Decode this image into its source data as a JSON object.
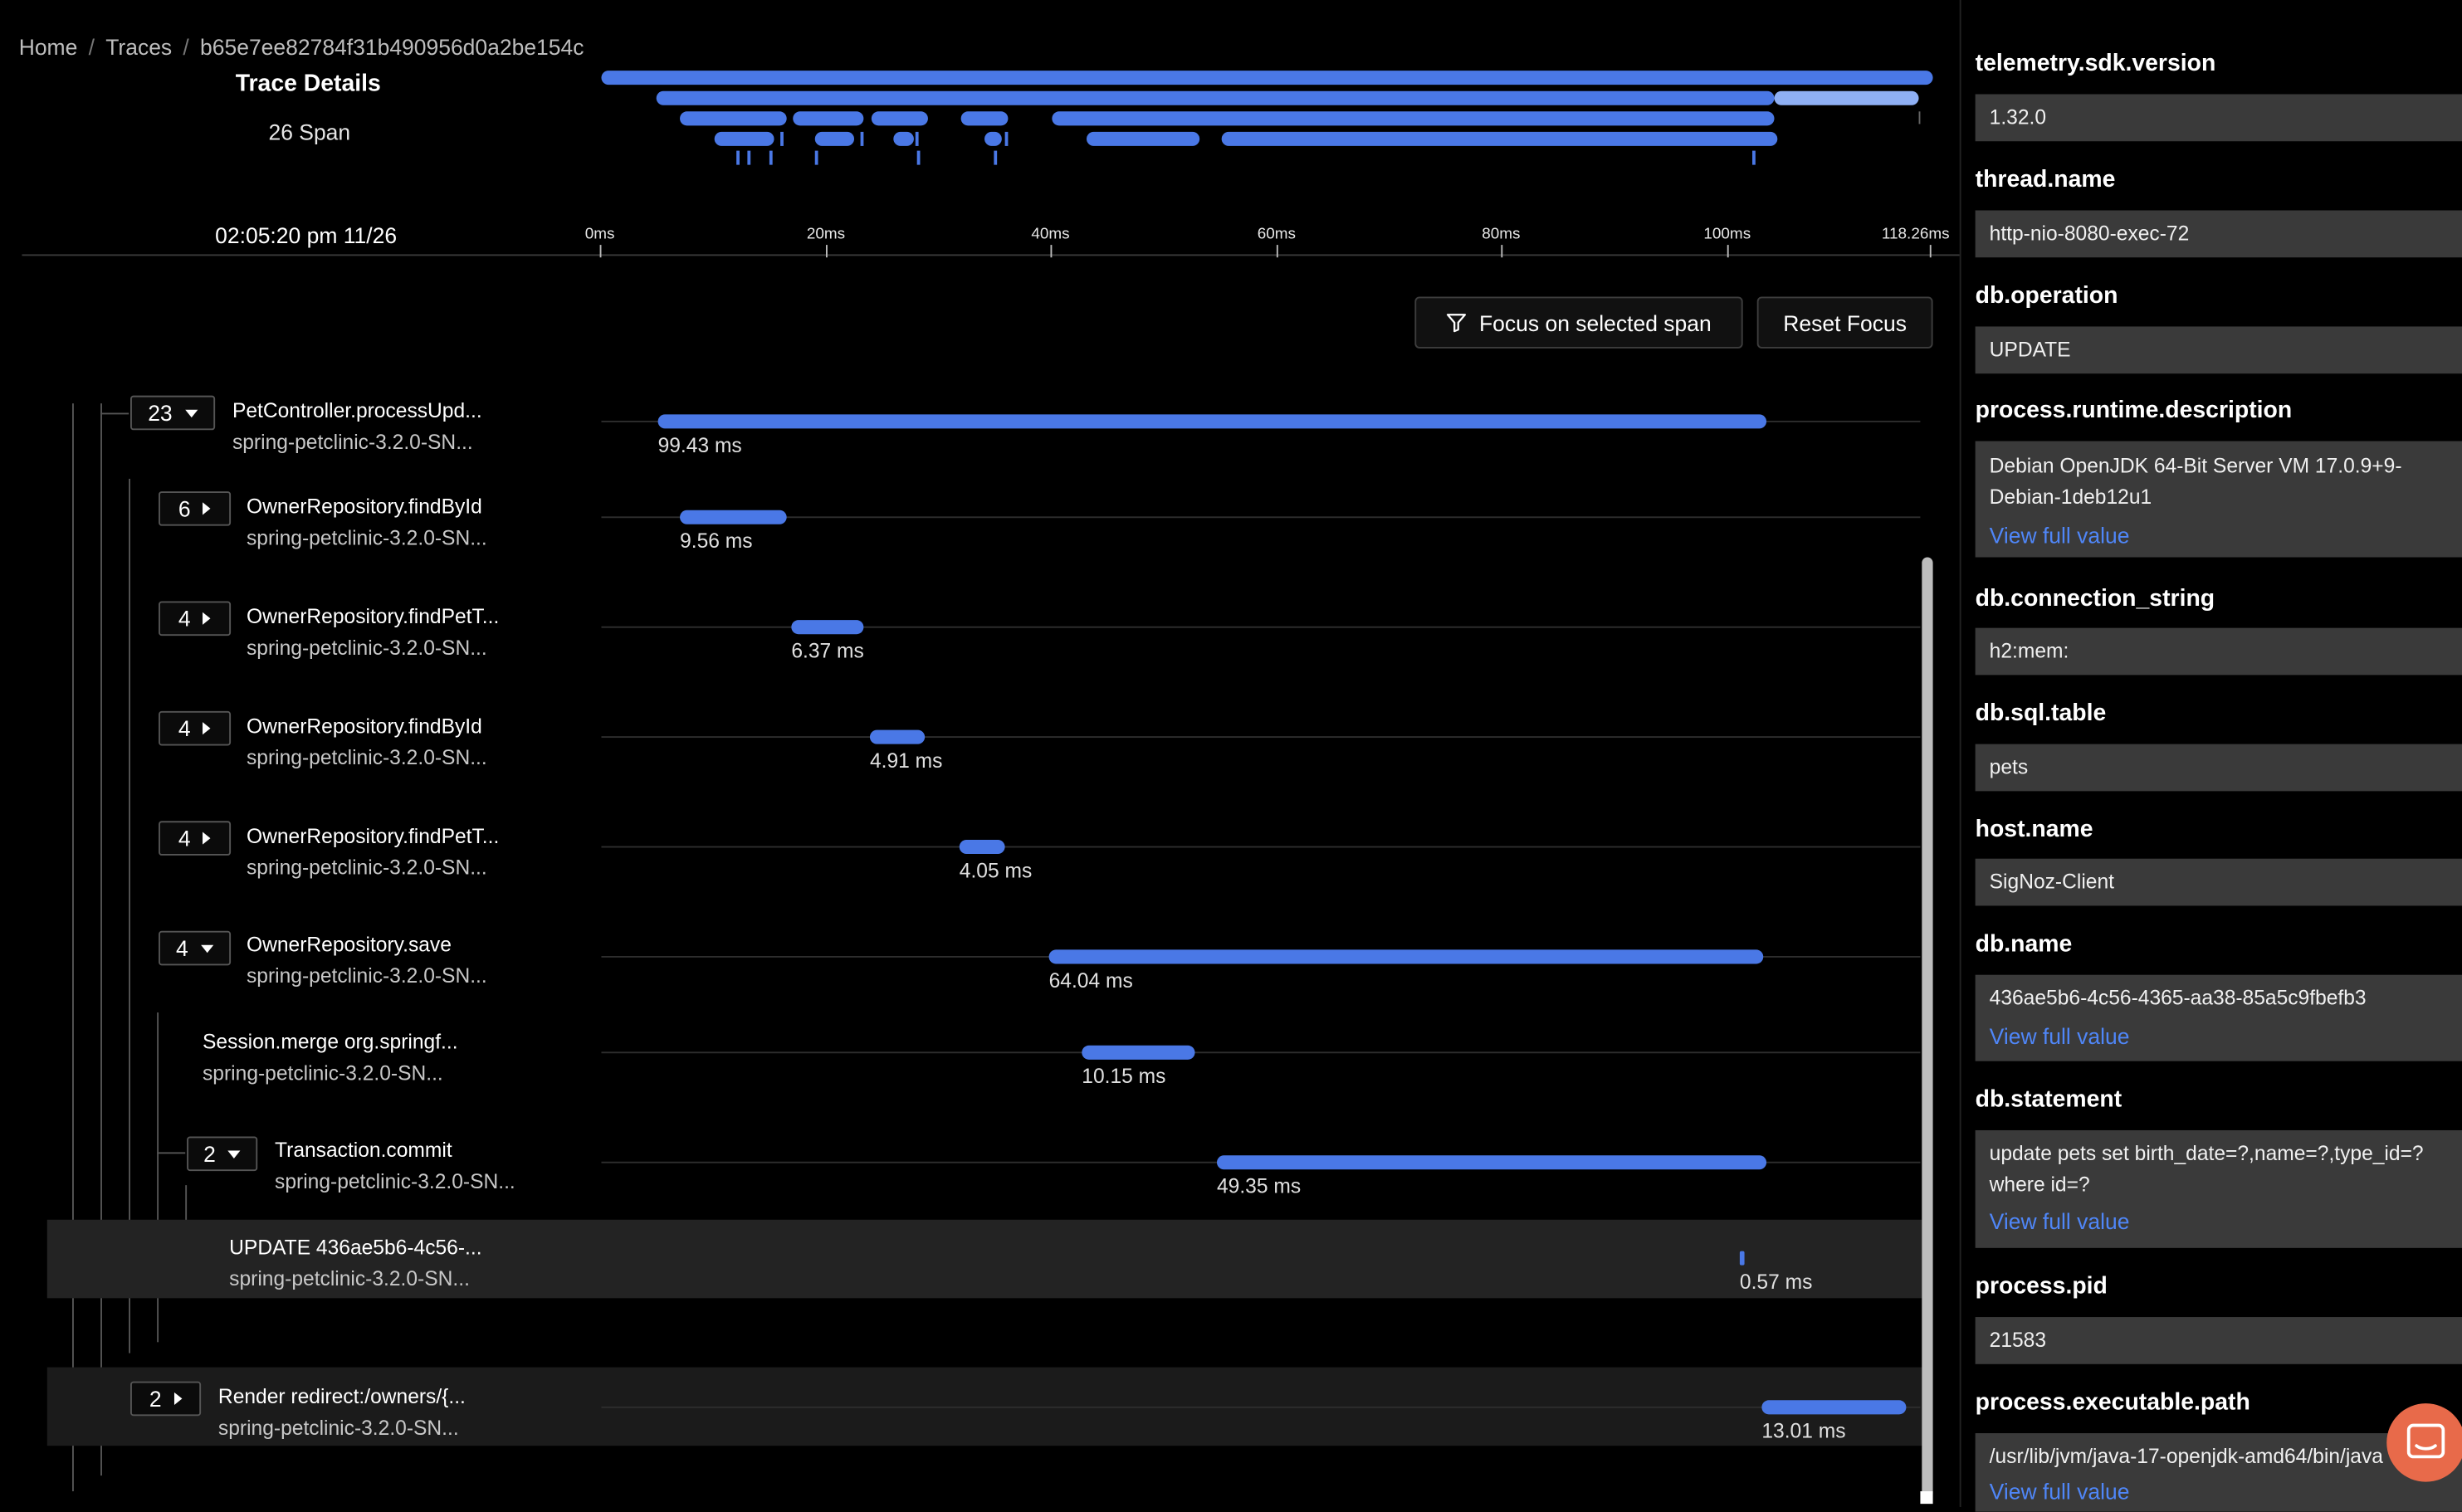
{
  "breadcrumb": {
    "home": "Home",
    "traces": "Traces",
    "trace_id": "b65e7ee82784f31b490956d0a2be154c",
    "separator": "/"
  },
  "trace_header": {
    "title": "Trace Details",
    "span_count": "26 Span",
    "timestamp": "02:05:20 pm 11/26"
  },
  "timeline": {
    "ticks": [
      "0ms",
      "20ms",
      "40ms",
      "60ms",
      "80ms",
      "100ms",
      "118.26ms"
    ],
    "total_ms": 118.26
  },
  "actions": {
    "focus_label": "Focus on selected span",
    "reset_label": "Reset Focus"
  },
  "spans": [
    {
      "count": "23",
      "expanded": true,
      "name": "PetController.processUpd...",
      "service": "spring-petclinic-3.2.0-SN...",
      "duration": "99.43 ms"
    },
    {
      "count": "6",
      "expanded": false,
      "name": "OwnerRepository.findById",
      "service": "spring-petclinic-3.2.0-SN...",
      "duration": "9.56 ms"
    },
    {
      "count": "4",
      "expanded": false,
      "name": "OwnerRepository.findPetT...",
      "service": "spring-petclinic-3.2.0-SN...",
      "duration": "6.37 ms"
    },
    {
      "count": "4",
      "expanded": false,
      "name": "OwnerRepository.findById",
      "service": "spring-petclinic-3.2.0-SN...",
      "duration": "4.91 ms"
    },
    {
      "count": "4",
      "expanded": false,
      "name": "OwnerRepository.findPetT...",
      "service": "spring-petclinic-3.2.0-SN...",
      "duration": "4.05 ms"
    },
    {
      "count": "4",
      "expanded": true,
      "name": "OwnerRepository.save",
      "service": "spring-petclinic-3.2.0-SN...",
      "duration": "64.04 ms"
    },
    {
      "count": "",
      "expanded": false,
      "name": "Session.merge org.springf...",
      "service": "spring-petclinic-3.2.0-SN...",
      "duration": "10.15 ms"
    },
    {
      "count": "2",
      "expanded": true,
      "name": "Transaction.commit",
      "service": "spring-petclinic-3.2.0-SN...",
      "duration": "49.35 ms"
    },
    {
      "count": "",
      "expanded": false,
      "name": "UPDATE 436ae5b6-4c56-...",
      "service": "spring-petclinic-3.2.0-SN...",
      "duration": "0.57 ms",
      "selected": true
    },
    {
      "count": "2",
      "expanded": false,
      "name": "Render redirect:/owners/{...",
      "service": "spring-petclinic-3.2.0-SN...",
      "duration": "13.01 ms"
    }
  ],
  "attributes": {
    "partial_top_key": "telemetry.sdk.version",
    "partial_top_value": "1.32.0",
    "items": [
      {
        "key": "thread.name",
        "value": "http-nio-8080-exec-72"
      },
      {
        "key": "db.operation",
        "value": "UPDATE"
      },
      {
        "key": "process.runtime.description",
        "value": "Debian OpenJDK 64-Bit Server VM 17.0.9+9-Debian-1deb12u1",
        "link": "View full value"
      },
      {
        "key": "db.connection_string",
        "value": "h2:mem:"
      },
      {
        "key": "db.sql.table",
        "value": "pets"
      },
      {
        "key": "host.name",
        "value": "SigNoz-Client"
      },
      {
        "key": "db.name",
        "value": "436ae5b6-4c56-4365-aa38-85a5c9fbefb3",
        "link": "View full value"
      },
      {
        "key": "db.statement",
        "value": "update pets set birth_date=?,name=?,type_id=? where id=?",
        "link": "View full value"
      },
      {
        "key": "process.pid",
        "value": "21583"
      },
      {
        "key": "process.executable.path",
        "value": "/usr/lib/jvm/java-17-openjdk-amd64/bin/java",
        "link": "View full value"
      }
    ]
  },
  "colors": {
    "bar": "#4a78e6",
    "bar_light": "#8fb0f4",
    "link": "#4f86f7",
    "chat": "#e86a4a"
  },
  "icons": {
    "filter": "filter-icon",
    "chat": "chat-bubble-icon"
  }
}
